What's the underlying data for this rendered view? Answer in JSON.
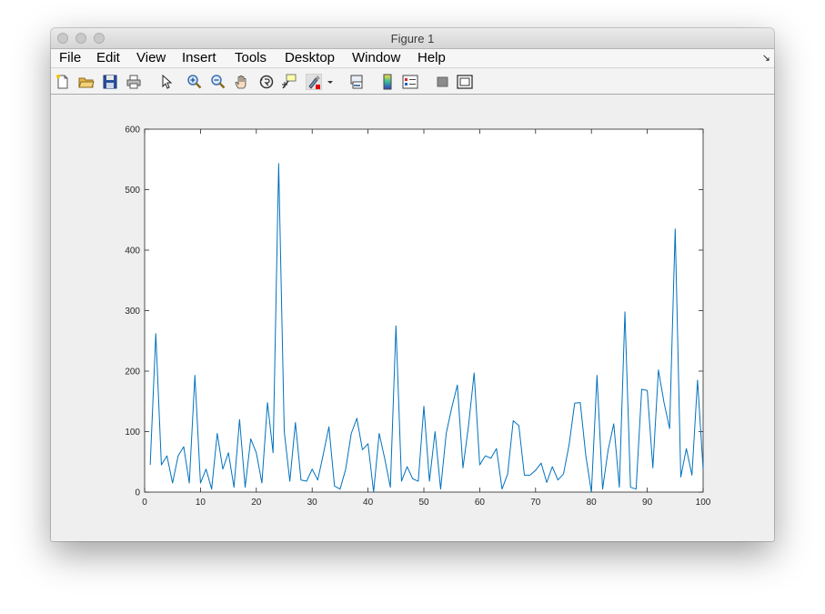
{
  "window": {
    "title": "Figure 1"
  },
  "menu": [
    "File",
    "Edit",
    "View",
    "Insert",
    "Tools",
    "Desktop",
    "Window",
    "Help"
  ],
  "toolbar": {
    "icons": [
      "new-figure-icon",
      "open-file-icon",
      "save-icon",
      "print-icon",
      "pointer-icon",
      "zoom-in-icon",
      "zoom-out-icon",
      "pan-hand-icon",
      "rotate-3d-icon",
      "data-cursor-icon",
      "brush-icon",
      "brush-dropdown-icon",
      "link-plot-icon",
      "colorbar-icon",
      "legend-icon",
      "hide-plot-tools-icon",
      "show-plot-tools-icon"
    ]
  },
  "colors": {
    "line": "#0072bd",
    "axes": "#262626"
  },
  "chart_data": {
    "type": "line",
    "title": "",
    "xlabel": "",
    "ylabel": "",
    "xlim": [
      0,
      100
    ],
    "ylim": [
      0,
      600
    ],
    "xticks": [
      0,
      10,
      20,
      30,
      40,
      50,
      60,
      70,
      80,
      90,
      100
    ],
    "yticks": [
      0,
      100,
      200,
      300,
      400,
      500,
      600
    ],
    "grid": false,
    "series": [
      {
        "x": [
          1,
          2,
          3,
          4,
          5,
          6,
          7,
          8,
          9,
          10,
          11,
          12,
          13,
          14,
          15,
          16,
          17,
          18,
          19,
          20,
          21,
          22,
          23,
          24,
          25,
          26,
          27,
          28,
          29,
          30,
          31,
          32,
          33,
          34,
          35,
          36,
          37,
          38,
          39,
          40,
          41,
          42,
          43,
          44,
          45,
          46,
          47,
          48,
          49,
          50,
          51,
          52,
          53,
          54,
          55,
          56,
          57,
          58,
          59,
          60,
          61,
          62,
          63,
          64,
          65,
          66,
          67,
          68,
          69,
          70,
          71,
          72,
          73,
          74,
          75,
          76,
          77,
          78,
          79,
          80,
          81,
          82,
          83,
          84,
          85,
          86,
          87,
          88,
          89,
          90,
          91,
          92,
          93,
          94,
          95,
          96,
          97,
          98,
          99,
          100
        ],
        "y": [
          45,
          262,
          45,
          60,
          15,
          60,
          75,
          15,
          193,
          15,
          38,
          5,
          97,
          38,
          65,
          8,
          120,
          8,
          88,
          65,
          15,
          148,
          65,
          543,
          100,
          18,
          115,
          20,
          18,
          38,
          20,
          63,
          108,
          10,
          5,
          38,
          97,
          122,
          70,
          80,
          0,
          97,
          55,
          8,
          275,
          18,
          42,
          22,
          18,
          142,
          18,
          100,
          5,
          97,
          140,
          177,
          40,
          110,
          197,
          45,
          60,
          56,
          72,
          5,
          30,
          118,
          110,
          28,
          28,
          36,
          48,
          16,
          42,
          20,
          30,
          78,
          147,
          148,
          60,
          0,
          193,
          5,
          70,
          113,
          8,
          298,
          8,
          5,
          170,
          168,
          40,
          202,
          148,
          105,
          435,
          25,
          72,
          28,
          185,
          38
        ]
      }
    ]
  }
}
